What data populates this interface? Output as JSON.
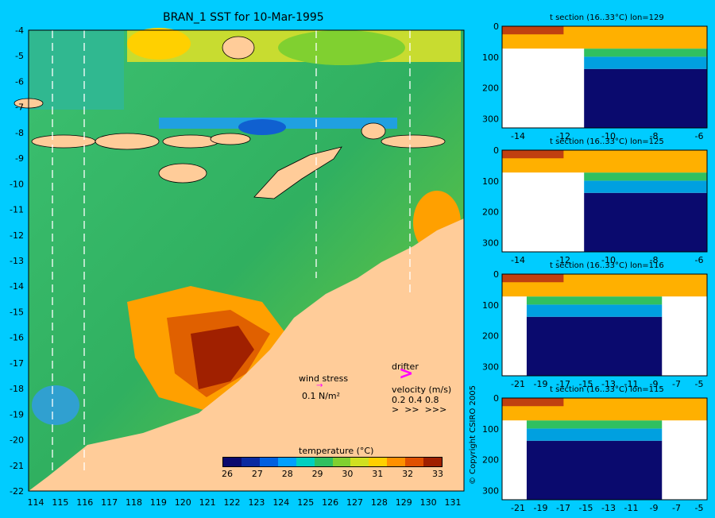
{
  "main_map": {
    "title": "BRAN_1 SST for 10-Mar-1995",
    "lat_ticks": [
      "-4",
      "-5",
      "-6",
      "-7",
      "-8",
      "-9",
      "-10",
      "-11",
      "-12",
      "-13",
      "-14",
      "-15",
      "-16",
      "-17",
      "-18",
      "-19",
      "-20",
      "-21",
      "-22"
    ],
    "lon_ticks": [
      "114",
      "115",
      "116",
      "117",
      "118",
      "119",
      "120",
      "121",
      "122",
      "123",
      "124",
      "125",
      "126",
      "127",
      "128",
      "129",
      "130",
      "131"
    ],
    "section_lon_lines": [
      "115",
      "116",
      "125",
      "129"
    ]
  },
  "wind_legend": {
    "label": "wind stress",
    "value": "0.1 N/m²",
    "arrow_color": "#ff00ff"
  },
  "drifter_legend": {
    "label": "drifter",
    "arrow_color": "#ff00ff"
  },
  "velocity_legend": {
    "label": "velocity (m/s)",
    "values": "0.2 0.4 0.8"
  },
  "colorbar": {
    "title": "temperature (°C)",
    "ticks": [
      "26",
      "27",
      "28",
      "29",
      "30",
      "31",
      "32",
      "33"
    ],
    "colors": [
      "#0a0a6e",
      "#0a2aa0",
      "#0060e0",
      "#00a0ff",
      "#00d0c0",
      "#30c060",
      "#80d030",
      "#d0e020",
      "#ffd000",
      "#ff9000",
      "#e05000",
      "#a02000"
    ]
  },
  "sections": [
    {
      "title": "t section (16..33°C) lon=129",
      "y_ticks": [
        "0",
        "100",
        "200",
        "300"
      ],
      "x_ticks": [
        "-14",
        "-12",
        "-10",
        "-8",
        "-6"
      ]
    },
    {
      "title": "t section (16..33°C) lon=125",
      "y_ticks": [
        "0",
        "100",
        "200",
        "300"
      ],
      "x_ticks": [
        "-14",
        "-12",
        "-10",
        "-8",
        "-6"
      ]
    },
    {
      "title": "t section (16..33°C) lon=116",
      "y_ticks": [
        "0",
        "100",
        "200",
        "300"
      ],
      "x_ticks": [
        "-21",
        "-19",
        "-17",
        "-15",
        "-13",
        "-11",
        "-9",
        "-7",
        "-5"
      ]
    },
    {
      "title": "t section (16..33°C) lon=115",
      "y_ticks": [
        "0",
        "100",
        "200",
        "300"
      ],
      "x_ticks": [
        "-21",
        "-19",
        "-17",
        "-15",
        "-13",
        "-11",
        "-9",
        "-7",
        "-5"
      ]
    }
  ],
  "copyright": "© Copyright CSIRO 2005"
}
